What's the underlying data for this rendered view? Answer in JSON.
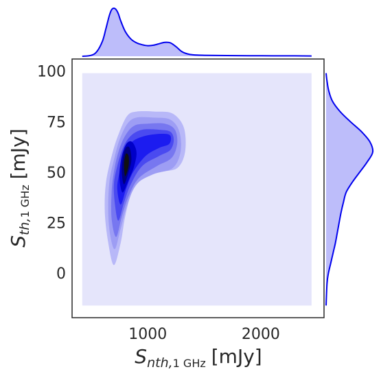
{
  "chart_data": {
    "type": "kde-joint",
    "title": "",
    "xlabel": {
      "main": "S",
      "sub_italic": "nth,",
      "sub_roman": "1 GHz",
      "unit": "[mJy]"
    },
    "ylabel": {
      "main": "S",
      "sub_italic": "th,",
      "sub_roman": "1 GHz",
      "unit": "[mJy]"
    },
    "xlim": [
      330,
      2560
    ],
    "ylim": [
      -22,
      106
    ],
    "x_ticks": [
      1000,
      2000
    ],
    "x_tick_labels": [
      "1000",
      "2000"
    ],
    "y_ticks": [
      0,
      25,
      50,
      75,
      100
    ],
    "y_tick_labels": [
      "0",
      "25",
      "50",
      "75",
      "100"
    ],
    "color": "#0000ee",
    "background_fill": "#e5e5fb",
    "fill_extent": {
      "x": [
        420,
        2450
      ],
      "y": [
        -16,
        99
      ]
    },
    "density_levels": [
      {
        "color": "#b8b8f8",
        "points": [
          [
            700,
            4
          ],
          [
            760,
            15
          ],
          [
            800,
            28
          ],
          [
            860,
            40
          ],
          [
            960,
            47
          ],
          [
            1100,
            50
          ],
          [
            1260,
            52
          ],
          [
            1330,
            60
          ],
          [
            1320,
            72
          ],
          [
            1220,
            79
          ],
          [
            1060,
            80
          ],
          [
            900,
            80
          ],
          [
            820,
            78
          ],
          [
            750,
            70
          ],
          [
            690,
            60
          ],
          [
            630,
            45
          ],
          [
            620,
            30
          ],
          [
            650,
            15
          ]
        ]
      },
      {
        "color": "#9d9df4",
        "points": [
          [
            710,
            12
          ],
          [
            760,
            22
          ],
          [
            820,
            34
          ],
          [
            900,
            44
          ],
          [
            1050,
            49
          ],
          [
            1220,
            52
          ],
          [
            1290,
            60
          ],
          [
            1280,
            70
          ],
          [
            1200,
            76
          ],
          [
            1050,
            77
          ],
          [
            900,
            77
          ],
          [
            820,
            74
          ],
          [
            750,
            66
          ],
          [
            700,
            56
          ],
          [
            660,
            45
          ],
          [
            650,
            30
          ],
          [
            670,
            18
          ]
        ]
      },
      {
        "color": "#7777f0",
        "points": [
          [
            720,
            18
          ],
          [
            770,
            28
          ],
          [
            830,
            38
          ],
          [
            920,
            47
          ],
          [
            1080,
            53
          ],
          [
            1210,
            57
          ],
          [
            1260,
            64
          ],
          [
            1240,
            71
          ],
          [
            1150,
            74
          ],
          [
            1000,
            74
          ],
          [
            880,
            73
          ],
          [
            800,
            68
          ],
          [
            740,
            60
          ],
          [
            700,
            50
          ],
          [
            680,
            40
          ],
          [
            680,
            27
          ]
        ]
      },
      {
        "color": "#4a4af0",
        "points": [
          [
            740,
            26
          ],
          [
            790,
            35
          ],
          [
            850,
            44
          ],
          [
            950,
            53
          ],
          [
            1100,
            58
          ],
          [
            1200,
            61
          ],
          [
            1230,
            66
          ],
          [
            1200,
            70
          ],
          [
            1100,
            71
          ],
          [
            950,
            71
          ],
          [
            850,
            68
          ],
          [
            780,
            62
          ],
          [
            730,
            53
          ],
          [
            700,
            44
          ],
          [
            710,
            34
          ]
        ]
      },
      {
        "color": "#1c1cf0",
        "points": [
          [
            760,
            34
          ],
          [
            810,
            42
          ],
          [
            870,
            50
          ],
          [
            980,
            58
          ],
          [
            1100,
            62
          ],
          [
            1190,
            64
          ],
          [
            1200,
            68
          ],
          [
            1130,
            69
          ],
          [
            980,
            68
          ],
          [
            860,
            65
          ],
          [
            790,
            59
          ],
          [
            750,
            50
          ],
          [
            730,
            42
          ]
        ]
      },
      {
        "color": "#0000c8",
        "points": [
          [
            780,
            40
          ],
          [
            830,
            46
          ],
          [
            880,
            53
          ],
          [
            900,
            60
          ],
          [
            860,
            65
          ],
          [
            810,
            64
          ],
          [
            770,
            58
          ],
          [
            750,
            50
          ],
          [
            755,
            44
          ]
        ]
      },
      {
        "color": "#000080",
        "points": [
          [
            790,
            44
          ],
          [
            830,
            50
          ],
          [
            855,
            56
          ],
          [
            840,
            62
          ],
          [
            805,
            62
          ],
          [
            780,
            57
          ],
          [
            770,
            50
          ]
        ]
      },
      {
        "color": "#111111",
        "points": [
          [
            800,
            48
          ],
          [
            830,
            53
          ],
          [
            830,
            58
          ],
          [
            805,
            59
          ],
          [
            790,
            54
          ]
        ]
      }
    ],
    "marginal_x": {
      "x": [
        420,
        500,
        550,
        600,
        630,
        660,
        680,
        700,
        720,
        740,
        760,
        800,
        850,
        900,
        950,
        1000,
        1050,
        1100,
        1150,
        1200,
        1250,
        1300,
        1350,
        1400,
        1500,
        1700,
        2000,
        2300,
        2450
      ],
      "density": [
        0.0,
        0.02,
        0.1,
        0.32,
        0.58,
        0.85,
        0.97,
        1.0,
        0.97,
        0.88,
        0.74,
        0.52,
        0.36,
        0.28,
        0.24,
        0.22,
        0.23,
        0.26,
        0.29,
        0.28,
        0.2,
        0.1,
        0.05,
        0.03,
        0.02,
        0.015,
        0.01,
        0.008,
        0.006
      ]
    },
    "marginal_y": {
      "y": [
        -16,
        -5,
        0,
        5,
        10,
        15,
        20,
        25,
        30,
        35,
        40,
        45,
        50,
        55,
        60,
        65,
        70,
        75,
        80,
        85,
        90,
        95,
        99
      ],
      "density": [
        0.0,
        0.02,
        0.05,
        0.1,
        0.15,
        0.2,
        0.24,
        0.28,
        0.32,
        0.37,
        0.43,
        0.56,
        0.72,
        0.88,
        1.0,
        0.94,
        0.76,
        0.52,
        0.3,
        0.14,
        0.06,
        0.02,
        0.0
      ]
    }
  }
}
